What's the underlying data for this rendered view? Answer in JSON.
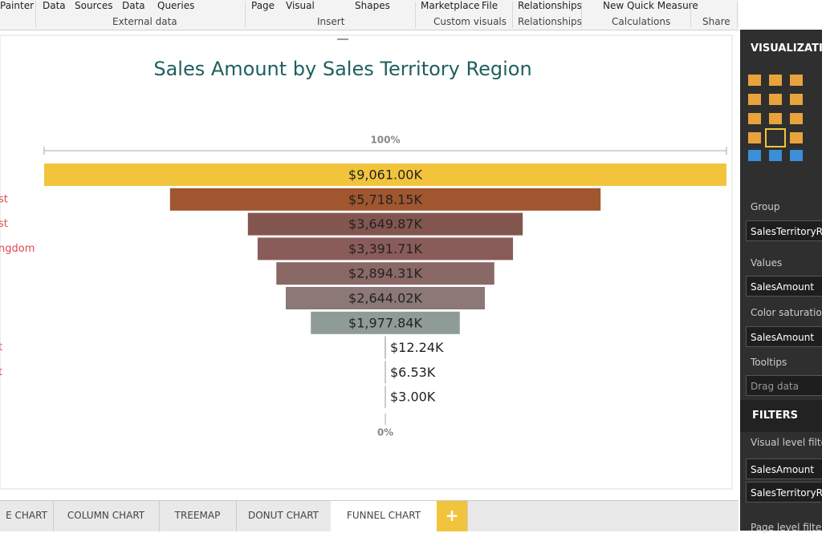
{
  "ribbon": {
    "items": [
      "Painter",
      "Data",
      "Sources",
      "Data",
      "Queries",
      "Page",
      "Visual",
      "Shapes",
      "Marketplace",
      "File",
      "Relationships",
      "New Quick Measure"
    ],
    "groups": [
      "External data",
      "Insert",
      "Custom visuals",
      "Relationships",
      "Calculations",
      "Share"
    ]
  },
  "chart_data": {
    "type": "funnel",
    "title": "Sales Amount by Sales Territory Region",
    "top_label": "100%",
    "bottom_label": "0%",
    "categories": [
      null,
      "st",
      "st",
      "ngdom",
      null,
      null,
      null,
      "t",
      "t",
      null
    ],
    "values": [
      9061.0,
      5718.15,
      3649.87,
      3391.71,
      2894.31,
      2644.02,
      1977.84,
      12.24,
      6.53,
      3.0
    ],
    "value_labels": [
      "$9,061.00K",
      "$5,718.15K",
      "$3,649.87K",
      "$3,391.71K",
      "$2,894.31K",
      "$2,644.02K",
      "$1,977.84K",
      "$12.24K",
      "$6.53K",
      "$3.00K"
    ],
    "colors": [
      "#f2c43c",
      "#a0562e",
      "#82564f",
      "#8a5c59",
      "#8a6866",
      "#8c7876",
      "#8f9b97",
      "#8f9b97",
      "#8f9b97",
      "#8f9b97"
    ]
  },
  "tabs": [
    "E CHART",
    "COLUMN CHART",
    "TREEMAP",
    "DONUT CHART",
    "FUNNEL CHART",
    "+"
  ],
  "pane": {
    "title": "VISUALIZATIO",
    "group": "Group",
    "group_field": "SalesTerritoryReg",
    "values": "Values",
    "values_field": "SalesAmount",
    "saturation": "Color saturation",
    "saturation_field": "SalesAmount",
    "tooltips": "Tooltips",
    "tooltips_field": "Drag data fields",
    "filters": "FILTERS",
    "visual_filters": "Visual level filters",
    "filter_1": "SalesAmount (A",
    "filter_2": "SalesTerritoryReg",
    "page_filters": "Page level filters"
  }
}
